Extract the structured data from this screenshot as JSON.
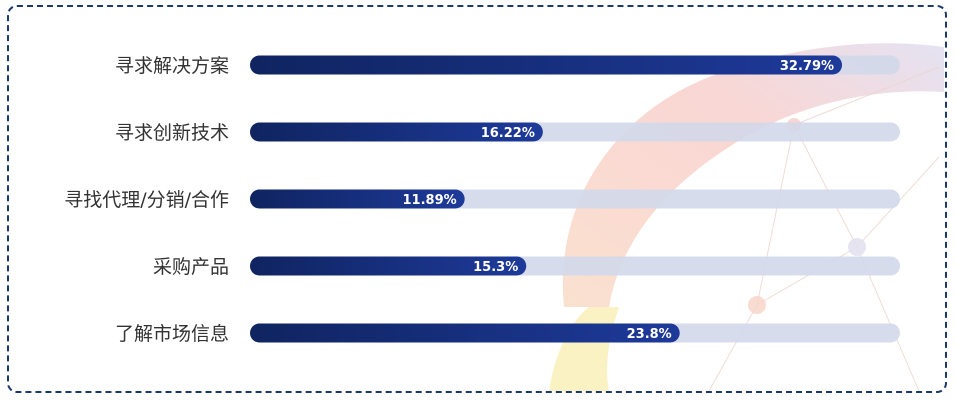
{
  "chart_data": {
    "type": "bar",
    "orientation": "horizontal",
    "categories": [
      "寻求解决方案",
      "寻求创新技术",
      "寻找代理/分销/合作",
      "采购产品",
      "了解市场信息"
    ],
    "values": [
      32.79,
      16.22,
      11.89,
      15.3,
      23.8
    ],
    "value_labels": [
      "32.79%",
      "16.22%",
      "11.89%",
      "15.3%",
      "23.8%"
    ],
    "xlim": [
      0,
      36
    ],
    "title": "",
    "xlabel": "",
    "ylabel": "",
    "grid": false,
    "legend": "none"
  },
  "colors": {
    "bar_start": "#0f2460",
    "bar_end": "#1e3a9a",
    "track": "#d2d8ea",
    "border": "#1b3a6b",
    "label_text": "#333333",
    "value_text": "#ffffff"
  }
}
